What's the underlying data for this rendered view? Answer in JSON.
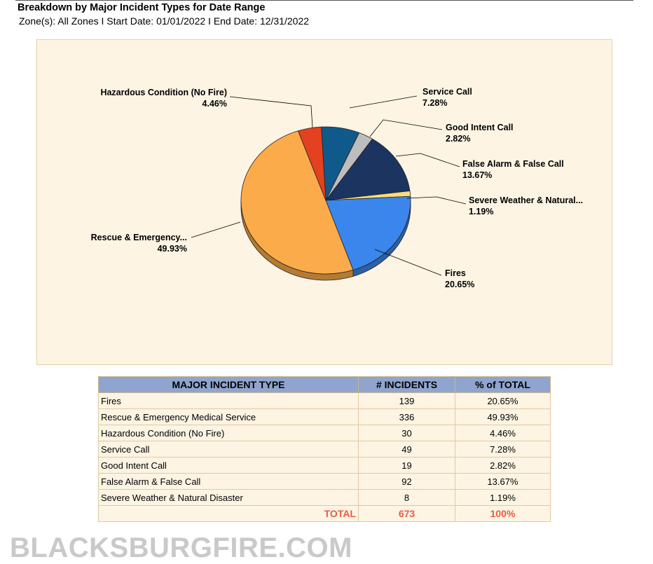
{
  "header": {
    "title": "Breakdown by Major Incident Types for Date Range",
    "subtitle": "Zone(s): All Zones I Start Date: 01/01/2022 I End Date: 12/31/2022"
  },
  "chart_data": {
    "type": "pie",
    "slices": [
      {
        "label": "Service Call",
        "pct": "7.28%",
        "value": 7.28,
        "color": "#0f5a8a"
      },
      {
        "label": "Good Intent Call",
        "pct": "2.82%",
        "value": 2.82,
        "color": "#bdbdbd"
      },
      {
        "label": "False Alarm & False Call",
        "pct": "13.67%",
        "value": 13.67,
        "color": "#1b3460"
      },
      {
        "label": "Severe Weather & Natural...",
        "pct": "1.19%",
        "value": 1.19,
        "color": "#f6dd7f"
      },
      {
        "label": "Fires",
        "pct": "20.65%",
        "value": 20.65,
        "color": "#3b86ec"
      },
      {
        "label": "Rescue & Emergency...",
        "pct": "49.93%",
        "value": 49.93,
        "color": "#fbab4a"
      },
      {
        "label": "Hazardous Condition (No Fire)",
        "pct": "4.46%",
        "value": 4.46,
        "color": "#e34120"
      }
    ]
  },
  "table": {
    "headers": [
      "MAJOR INCIDENT TYPE",
      "# INCIDENTS",
      "% of TOTAL"
    ],
    "rows": [
      [
        "Fires",
        "139",
        "20.65%"
      ],
      [
        "Rescue & Emergency Medical Service",
        "336",
        "49.93%"
      ],
      [
        "Hazardous Condition (No Fire)",
        "30",
        "4.46%"
      ],
      [
        "Service Call",
        "49",
        "7.28%"
      ],
      [
        "Good Intent Call",
        "19",
        "2.82%"
      ],
      [
        "False Alarm & False Call",
        "92",
        "13.67%"
      ],
      [
        "Severe Weather & Natural Disaster",
        "8",
        "1.19%"
      ]
    ],
    "total": {
      "label": "TOTAL",
      "count": "673",
      "pct": "100%"
    }
  },
  "watermark": "BLACKSBURGFIRE.COM"
}
